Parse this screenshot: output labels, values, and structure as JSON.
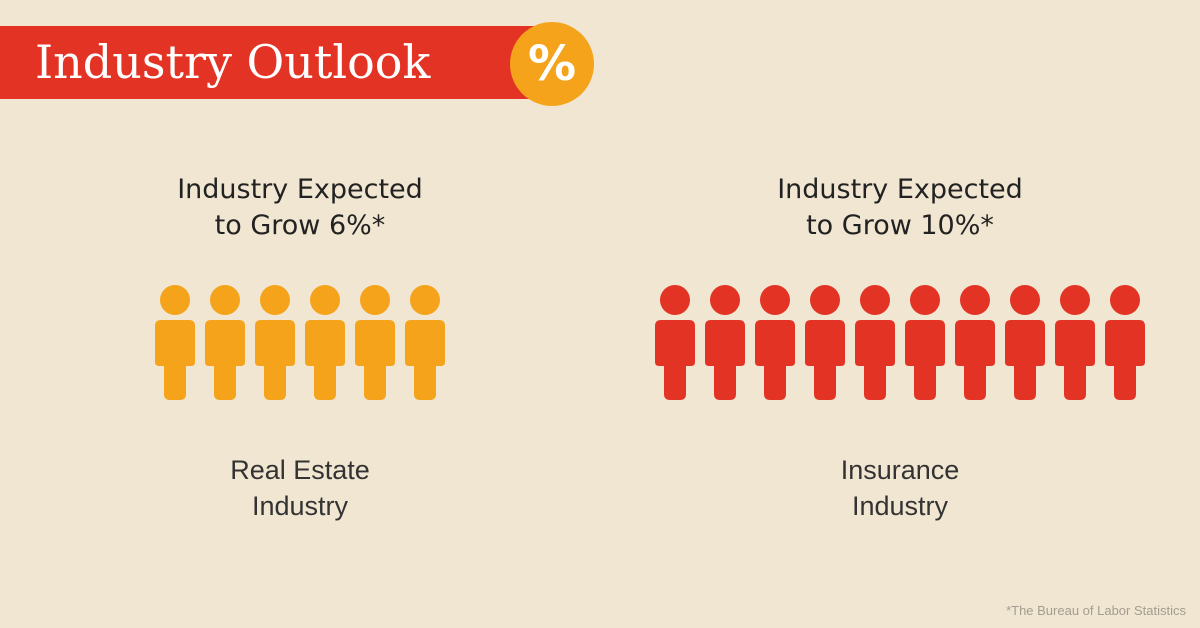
{
  "banner": {
    "title": "Industry Outlook",
    "badge": "%"
  },
  "colors": {
    "background": "#f1e6d1",
    "banner": "#e33324",
    "badge": "#f5a31b",
    "real_estate": "#f5a31b",
    "insurance": "#e33324"
  },
  "chart_data": {
    "type": "pictograph",
    "unit": "%",
    "groups": [
      {
        "heading_line1": "Industry Expected",
        "heading_line2": "to Grow 6%*",
        "label_line1": "Real Estate",
        "label_line2": "Industry",
        "value": 6,
        "icon": "person-icon",
        "color": "#f5a31b"
      },
      {
        "heading_line1": "Industry Expected",
        "heading_line2": "to Grow 10%*",
        "label_line1": "Insurance",
        "label_line2": "Industry",
        "value": 10,
        "icon": "person-icon",
        "color": "#e33324"
      }
    ]
  },
  "footnote": "*The Bureau of Labor Statistics"
}
